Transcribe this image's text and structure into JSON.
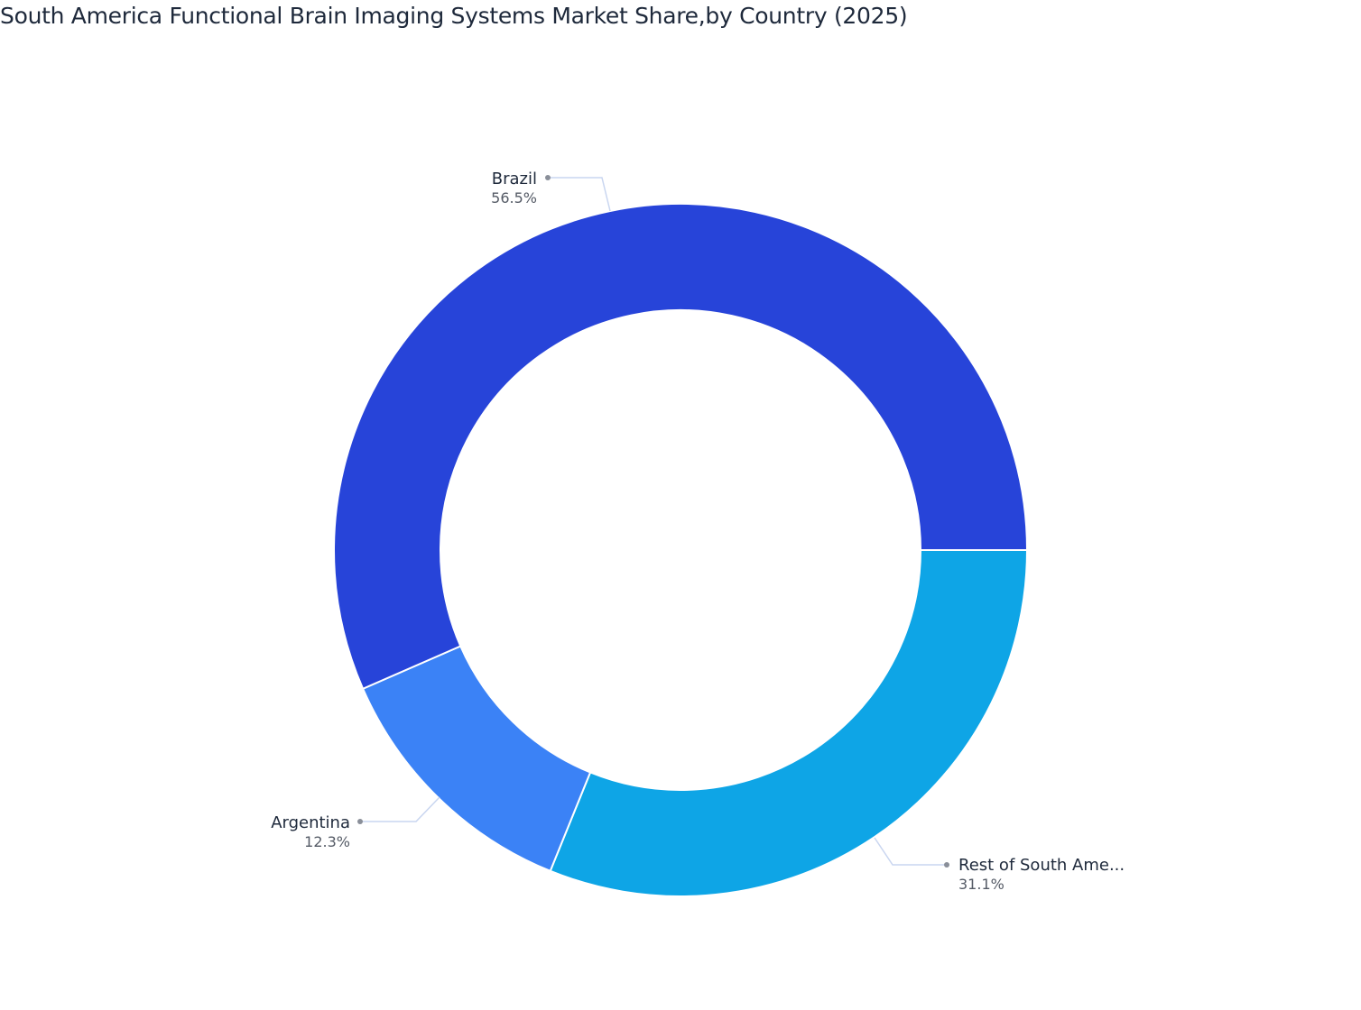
{
  "title": "South America Functional Brain Imaging Systems Market Share,by Country (2025)",
  "chart_data": {
    "type": "pie",
    "donut": true,
    "title": "South America Functional Brain Imaging Systems Market Share,by Country (2025)",
    "categories": [
      "Brazil",
      "Rest of South Ame...",
      "Argentina"
    ],
    "values": [
      56.5,
      31.1,
      12.3
    ],
    "labels": [
      "56.5%",
      "31.1%",
      "12.3%"
    ],
    "colors": [
      "#2744d9",
      "#0ea5e6",
      "#3b82f6"
    ],
    "legend": "none"
  },
  "slices": [
    {
      "name": "Brazil",
      "pct": "56.5%",
      "color": "#2744d9"
    },
    {
      "name": "Rest of South Ame...",
      "pct": "31.1%",
      "color": "#0ea5e6"
    },
    {
      "name": "Argentina",
      "pct": "12.3%",
      "color": "#3b82f6"
    }
  ]
}
